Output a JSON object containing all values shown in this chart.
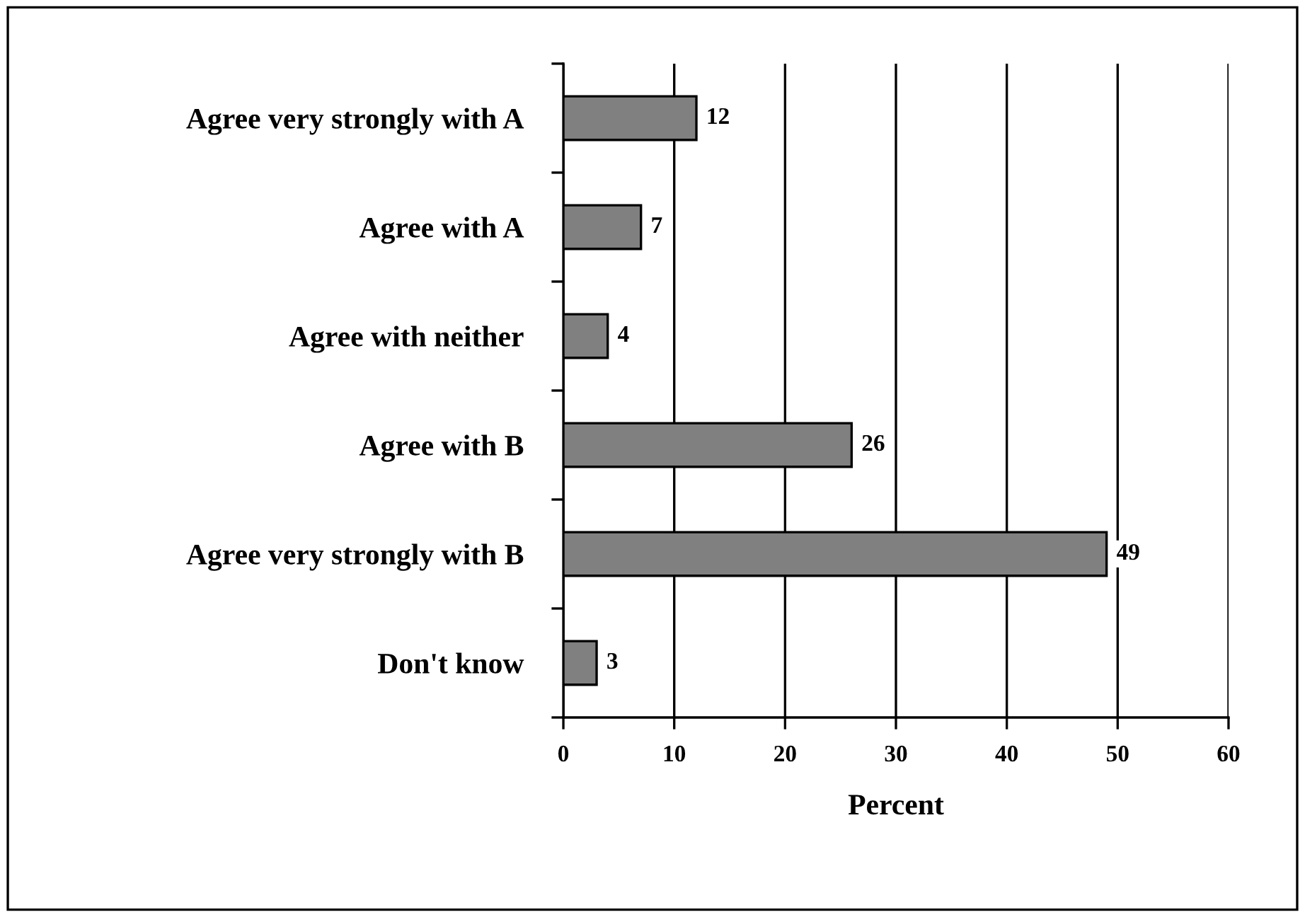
{
  "chart_data": {
    "type": "bar",
    "orientation": "horizontal",
    "xlabel": "Percent",
    "categories": [
      "Agree very strongly with A",
      "Agree with A",
      "Agree with neither",
      "Agree with B",
      "Agree very strongly with B",
      "Don't know"
    ],
    "values": [
      12,
      7,
      4,
      26,
      49,
      3
    ],
    "color": "#808080",
    "xlim": [
      0,
      60
    ],
    "xticks": [
      0,
      10,
      20,
      30,
      40,
      50,
      60
    ],
    "grid": "x",
    "data_labels": true,
    "legend": false
  }
}
